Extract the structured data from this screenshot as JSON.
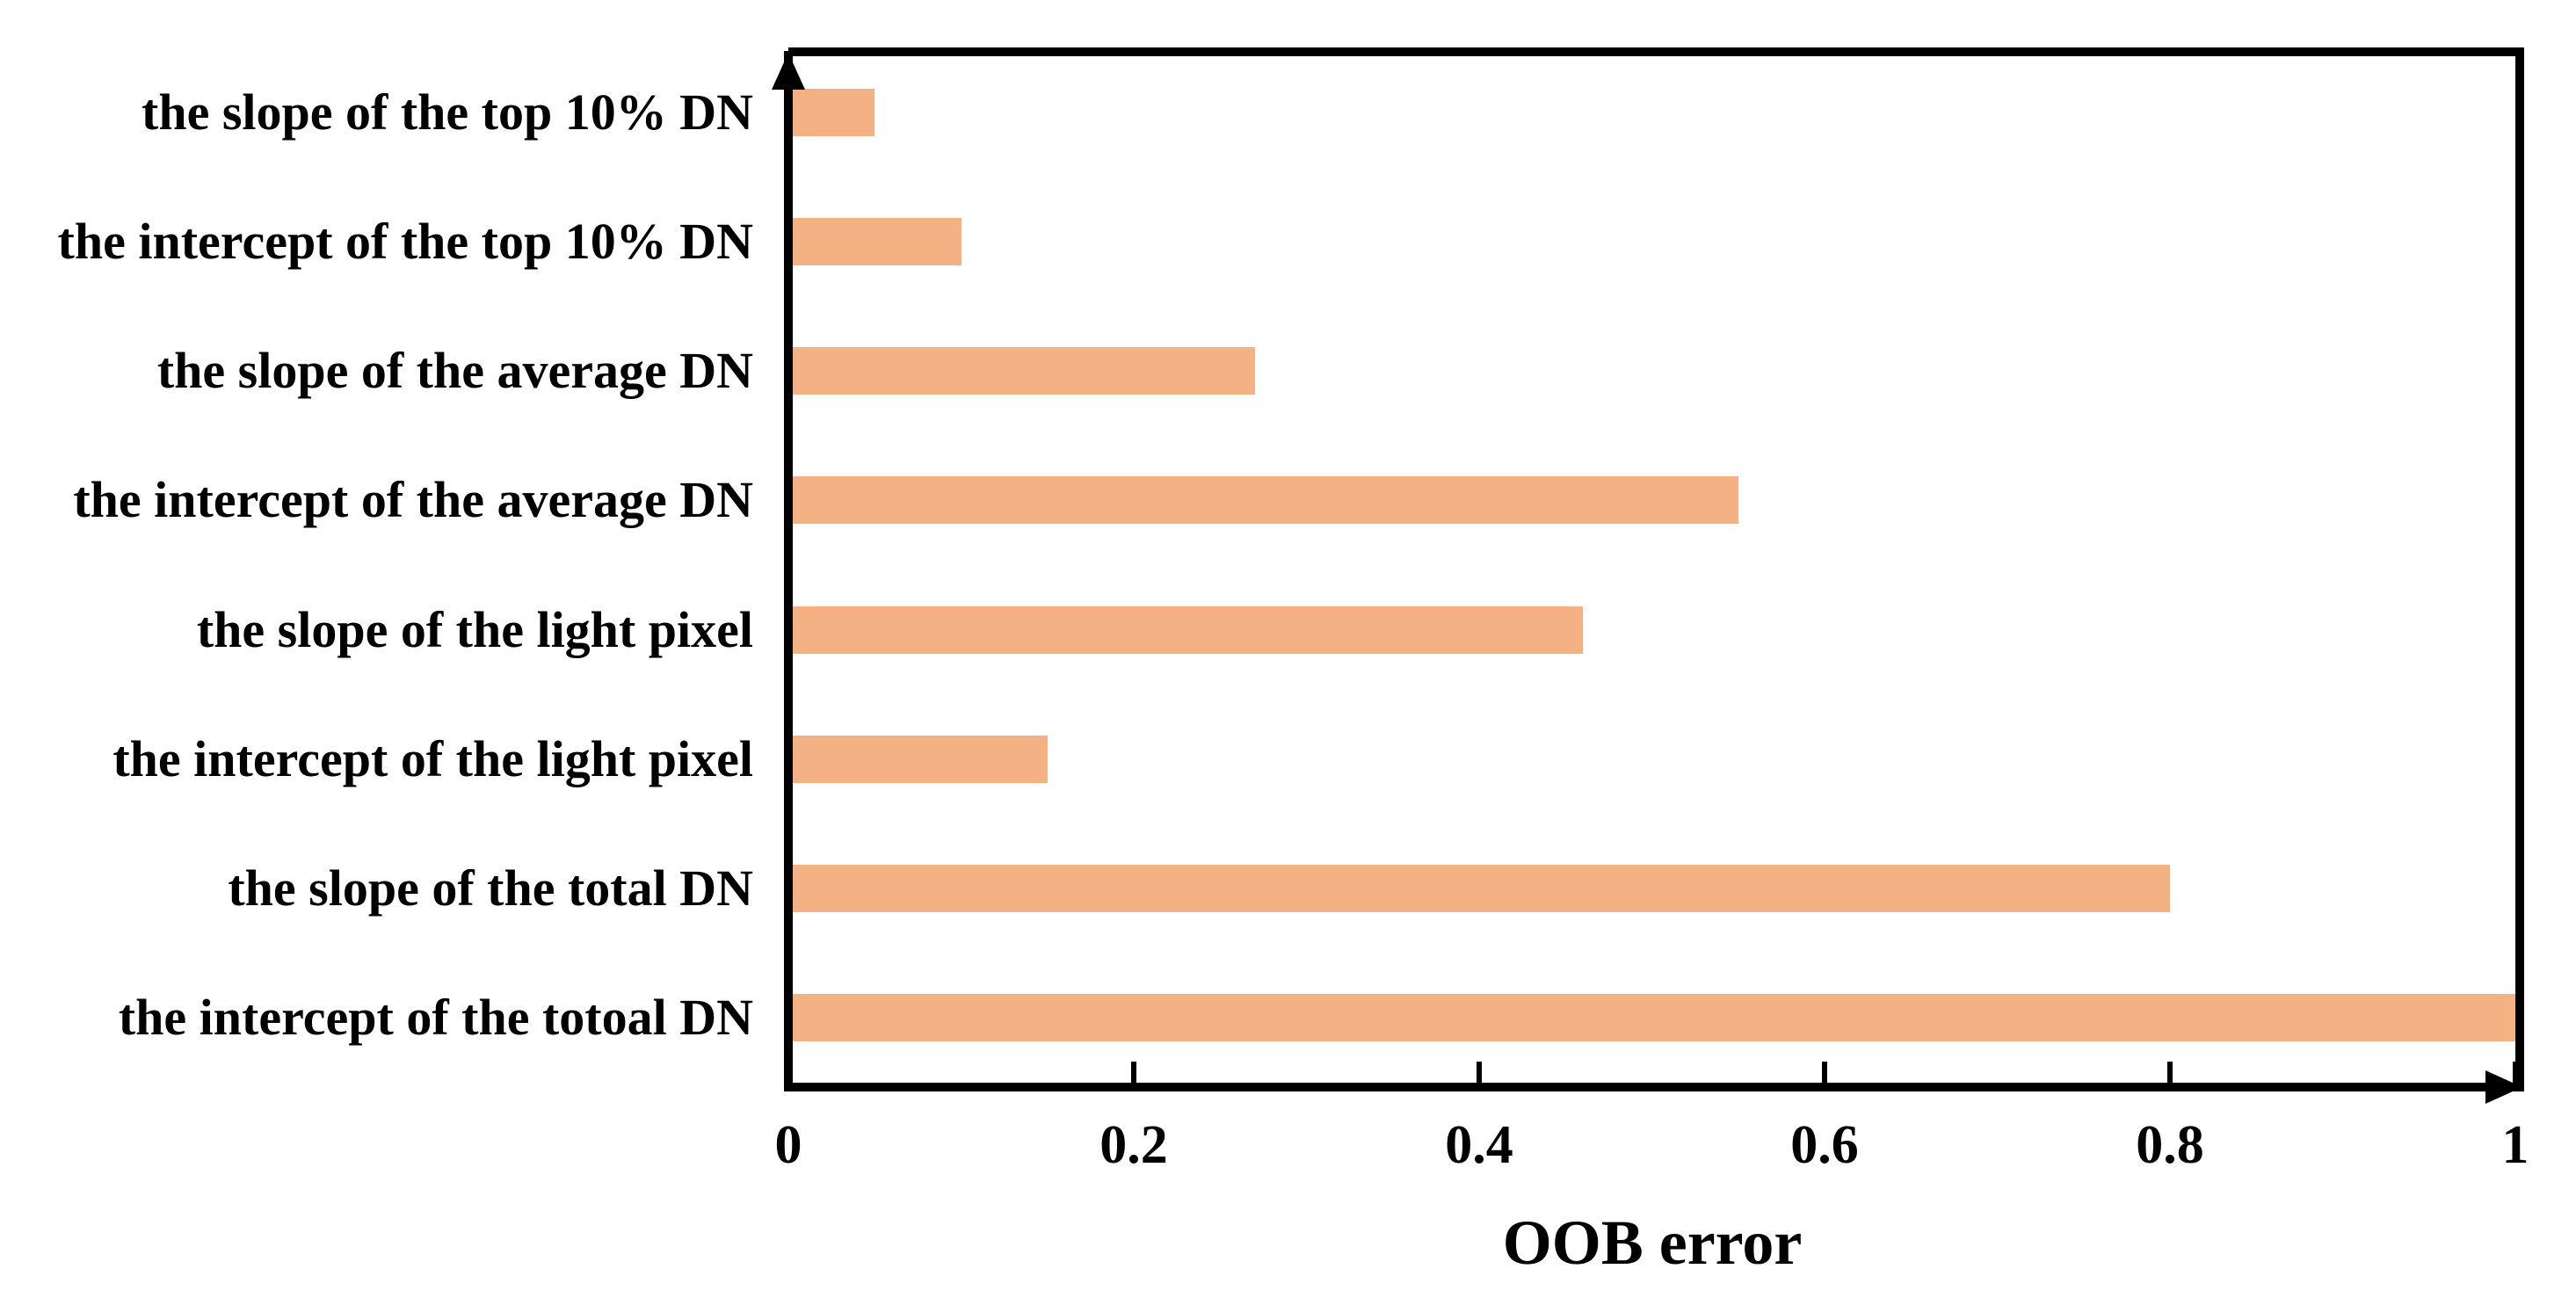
{
  "chart_data": {
    "type": "bar",
    "orientation": "horizontal",
    "title": "",
    "xlabel": "OOB error",
    "ylabel": "",
    "categories": [
      "the slope of the top 10% DN",
      "the intercept of the top 10% DN",
      "the slope of the average DN",
      "the intercept of the average DN",
      "the slope of the light pixel",
      "the intercept of the light pixel",
      "the slope of the total DN",
      "the intercept of the totoal DN"
    ],
    "values": [
      0.05,
      0.1,
      0.27,
      0.55,
      0.46,
      0.15,
      0.8,
      1.0
    ],
    "xlim": [
      0,
      1
    ],
    "x_ticks": [
      {
        "label": "0",
        "value": 0
      },
      {
        "label": "0.2",
        "value": 0.2
      },
      {
        "label": "0.4",
        "value": 0.4
      },
      {
        "label": "0.6",
        "value": 0.6
      },
      {
        "label": "0.8",
        "value": 0.8
      },
      {
        "label": "1",
        "value": 1
      }
    ],
    "grid": false,
    "legend": false,
    "colors": {
      "bar": "#F4B183",
      "axis": "#000000",
      "text": "#000000",
      "background": "#FFFFFF"
    }
  }
}
